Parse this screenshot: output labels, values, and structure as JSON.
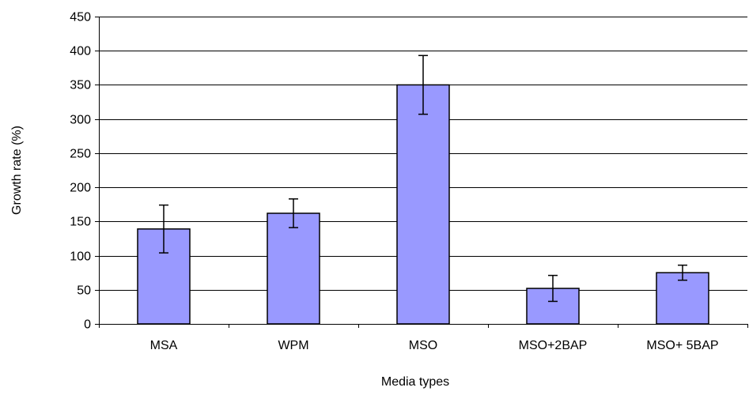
{
  "chart_data": {
    "type": "bar",
    "title": "",
    "xlabel": "Media types",
    "ylabel": "Growth rate (%)",
    "categories": [
      "MSA",
      "WPM",
      "MSO",
      "MSO+2BAP",
      "MSO+ 5BAP"
    ],
    "values": [
      139,
      162,
      350,
      52,
      75
    ],
    "error": [
      35,
      21,
      43,
      19,
      11
    ],
    "ylim": [
      0,
      450
    ],
    "yticks": [
      0,
      50,
      100,
      150,
      200,
      250,
      300,
      350,
      400,
      450
    ],
    "ytick_labels": [
      "0",
      "50",
      "100",
      "150",
      "200",
      "250",
      "300",
      "350",
      "400",
      "450"
    ],
    "grid": "horizontal",
    "legend": "none",
    "colors": {
      "bar_fill": "#9999ff",
      "bar_stroke": "#000000",
      "grid": "#000000",
      "axis": "#000000"
    }
  }
}
